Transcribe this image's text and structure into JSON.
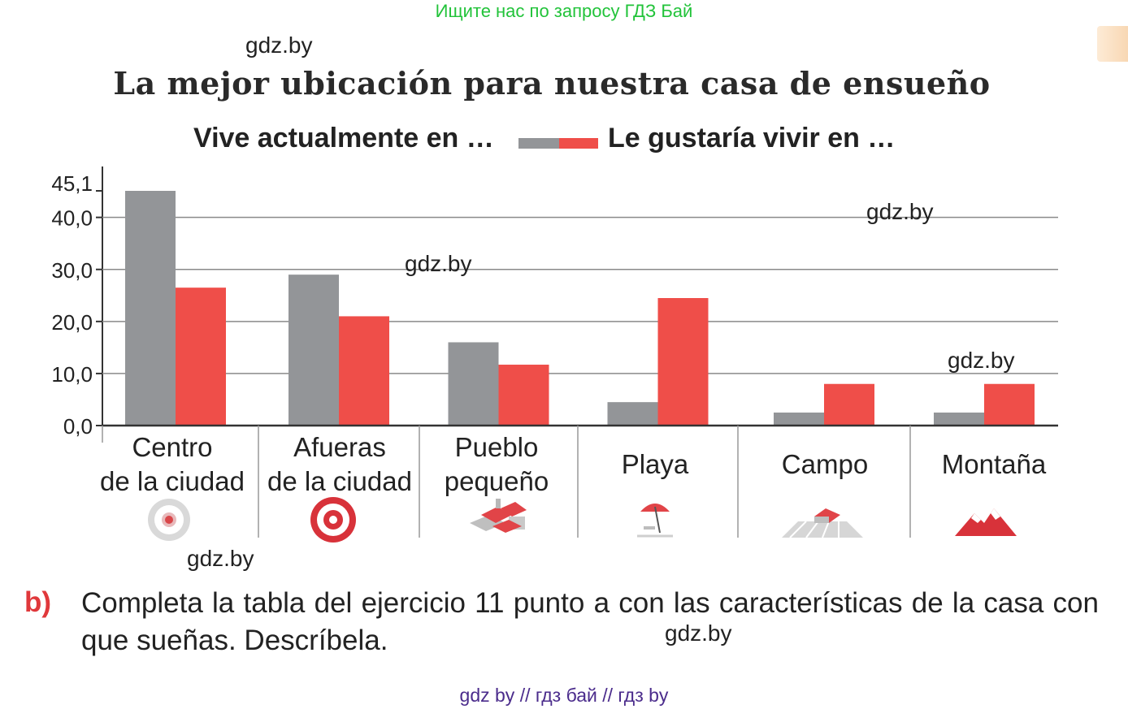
{
  "banner": "Ищите нас по запросу ГДЗ Бай",
  "watermarks": [
    "gdz.by",
    "gdz.by",
    "gdz.by",
    "gdz.by",
    "gdz.by",
    "gdz.by"
  ],
  "chart_data": {
    "type": "bar",
    "title": "La mejor ubicación para nuestra casa de ensueño",
    "categories": [
      [
        "Centro",
        "de la ciudad"
      ],
      [
        "Afueras",
        "de la ciudad"
      ],
      [
        "Pueblo",
        "pequeño"
      ],
      [
        "Playa"
      ],
      [
        "Campo"
      ],
      [
        "Montaña"
      ]
    ],
    "icons": [
      "target-light-icon",
      "target-red-icon",
      "town-houses-icon",
      "beach-umbrella-icon",
      "countryside-farm-icon",
      "mountain-icon"
    ],
    "series": [
      {
        "name": "Vive actualmente en …",
        "color": "#939598",
        "values": [
          45.1,
          29.0,
          16.0,
          4.5,
          2.5,
          2.5
        ]
      },
      {
        "name": "Le gustaría vivir en …",
        "color": "#ef4e49",
        "values": [
          26.5,
          21.0,
          11.7,
          24.5,
          8.0,
          8.0
        ]
      }
    ],
    "yticks": [
      "0,0",
      "10,0",
      "20,0",
      "30,0",
      "40,0",
      "45,1"
    ],
    "ytick_values": [
      0,
      10,
      20,
      30,
      40,
      45.1
    ],
    "ylim": [
      0,
      45.1
    ],
    "grid": true,
    "legend": "top"
  },
  "exercise": {
    "letter": "b)",
    "text": "Completa la tabla del ejercicio 11 punto a con las características de la casa con que sueñas. Descríbela."
  },
  "footer": "gdz by  //  гдз бай  //  гдз by"
}
